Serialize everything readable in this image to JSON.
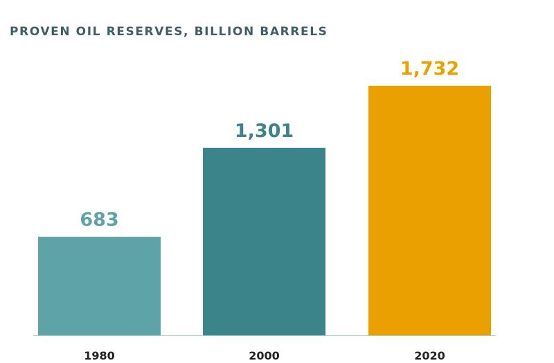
{
  "chart_data": {
    "type": "bar",
    "title": "PROVEN OIL RESERVES, BILLION BARRELS",
    "categories": [
      "1980",
      "2000",
      "2020"
    ],
    "values": [
      683,
      1301,
      1732
    ],
    "value_labels": [
      "683",
      "1,301",
      "1,732"
    ],
    "ylim": [
      0,
      1732
    ],
    "grid": false,
    "legend": "none",
    "bar_colors": [
      "#5ea3a8",
      "#3b8489",
      "#e9a100"
    ],
    "label_colors": [
      "#5ea3a8",
      "#3b8489",
      "#e9a100"
    ],
    "baseline_color": "#a8d0cc"
  }
}
